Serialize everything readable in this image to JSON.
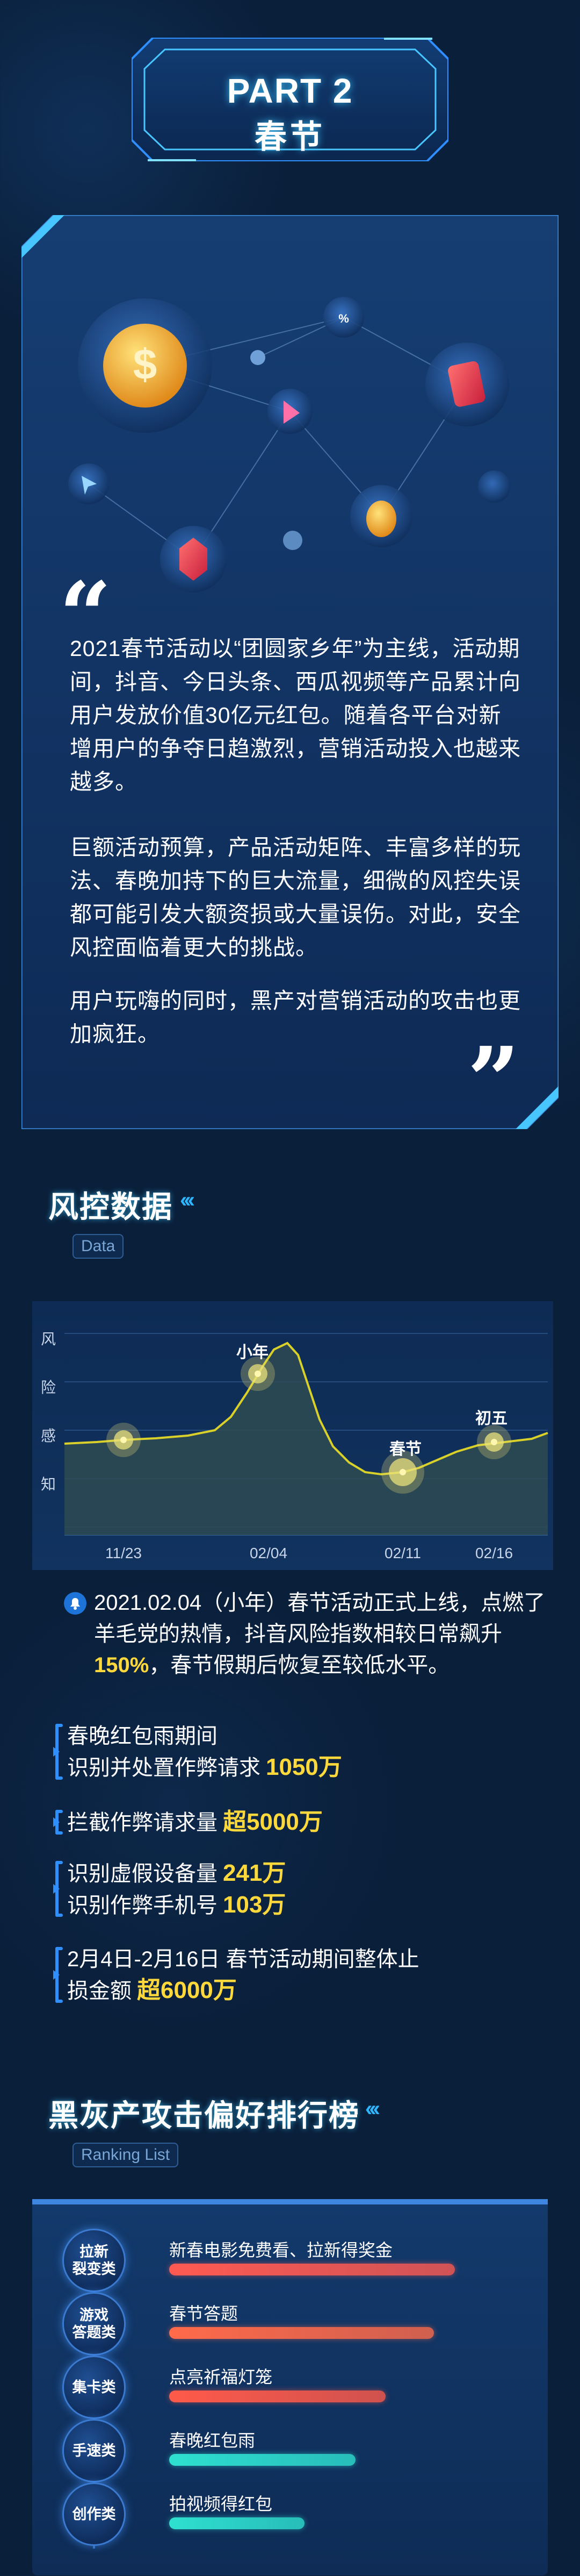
{
  "header": {
    "part": "PART 2",
    "title": "春节"
  },
  "intro": {
    "open_quote": "“",
    "close_quote": "”",
    "paragraphs": [
      "2021春节活动以“团圆家乡年”为主线，活动期间，抖音、今日头条、西瓜视频等产品累计向用户发放价值30亿元红包。随着各平台对新增用户的争夺日趋激烈，营销活动投入也越来越多。",
      "巨额活动预算，产品活动矩阵、丰富多样的玩法、春晚加持下的巨大流量，细微的风控失误都可能引发大额资损或大量误伤。对此，安全风控面临着更大的挑战。",
      "用户玩嗨的同时，黑产对营销活动的攻击也更加疯狂。"
    ]
  },
  "risk_section": {
    "title": "风控数据",
    "subtitle": "Data"
  },
  "chart_data": {
    "type": "area",
    "ylabel": "风险感知",
    "ylabel_chars": [
      "风",
      "险",
      "感",
      "知"
    ],
    "x_ticks": [
      "11/23",
      "02/04",
      "02/11",
      "02/16"
    ],
    "annotations": [
      {
        "label": "小年",
        "x": "02/04"
      },
      {
        "label": "春节",
        "x": "02/11"
      },
      {
        "label": "初五",
        "x": "02/16"
      }
    ],
    "grid": true,
    "colors": {
      "line": "#d9d12a",
      "area": "#2e4a52",
      "marker": "#e8e07a"
    }
  },
  "risk_note": {
    "before": "2021.02.04（小年）春节活动正式上线，点燃了羊毛党的热情，抖音风险指数相较日常飙升",
    "highlight": "150%",
    "after": "，春节假期后恢复至较低水平。"
  },
  "stats": [
    {
      "lines": [
        {
          "text": "春晚红包雨期间",
          "num": ""
        },
        {
          "text": "识别并处置作弊请求",
          "num": "1050万"
        }
      ]
    },
    {
      "lines": [
        {
          "text": "拦截作弊请求量",
          "num": "超5000万"
        }
      ]
    },
    {
      "lines": [
        {
          "text": "识别虚假设备量",
          "num": "241万"
        },
        {
          "text": "识别作弊手机号",
          "num": "103万"
        }
      ]
    },
    {
      "lines": [
        {
          "text": "2月4日-2月16日 春节活动期间整体止",
          "num": ""
        },
        {
          "text": "损金额",
          "num": "超6000万"
        }
      ]
    }
  ],
  "ranking_section": {
    "title": "黑灰产攻击偏好排行榜",
    "subtitle": "Ranking List"
  },
  "ranking": [
    {
      "badge": "拉新\n裂变类",
      "label": "新春电影免费看、拉新得奖金",
      "level": 0.95,
      "color": "#ff5a52"
    },
    {
      "badge": "游戏\n答题类",
      "label": "春节答题",
      "level": 0.88,
      "color": "#ff6a4a"
    },
    {
      "badge": "集卡类",
      "label": "点亮祈福灯笼",
      "level": 0.72,
      "color": "#ff5a4a"
    },
    {
      "badge": "手速类",
      "label": "春晚红包雨",
      "level": 0.62,
      "color": "#2ee0d0"
    },
    {
      "badge": "创作类",
      "label": "拍视频得红包",
      "level": 0.45,
      "color": "#2ee0d0"
    }
  ]
}
